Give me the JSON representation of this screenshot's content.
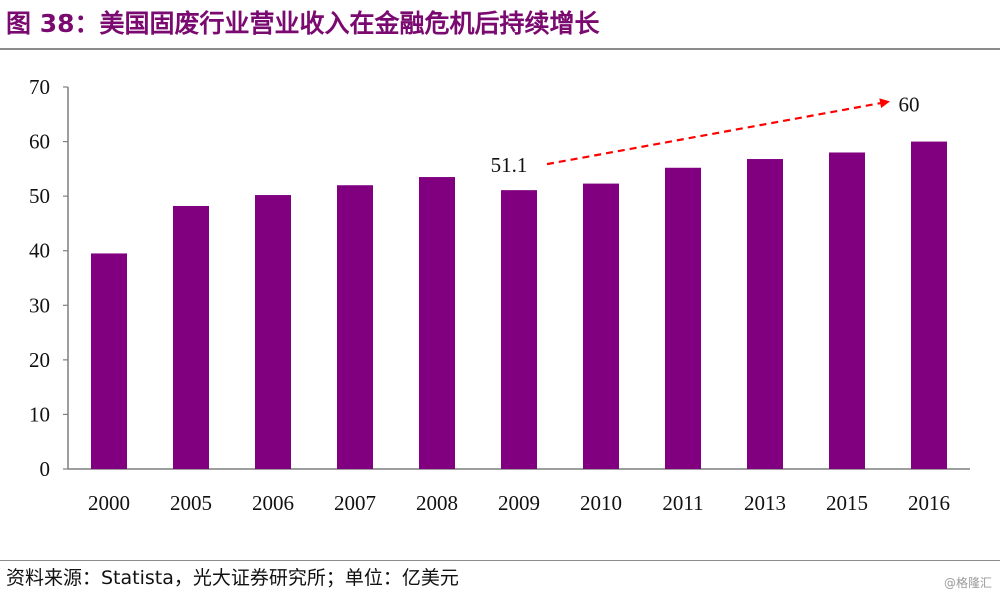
{
  "title": "图 38：美国固废行业营业收入在金融危机后持续增长",
  "source": "资料来源：Statista，光大证券研究所；单位：亿美元",
  "watermark": "@格隆汇",
  "chart_data": {
    "type": "bar",
    "categories": [
      "2000",
      "2005",
      "2006",
      "2007",
      "2008",
      "2009",
      "2010",
      "2011",
      "2013",
      "2015",
      "2016"
    ],
    "values": [
      39.5,
      48.2,
      50.2,
      52.0,
      53.5,
      51.1,
      52.3,
      55.2,
      56.8,
      58.0,
      60.0
    ],
    "ylim": [
      0,
      70
    ],
    "yticks": [
      0,
      10,
      20,
      30,
      40,
      50,
      60,
      70
    ],
    "bar_color": "#800080",
    "grid": false,
    "legend": "none",
    "annotations": [
      {
        "text": "51.1",
        "category": "2009"
      },
      {
        "text": "60",
        "category": "2016"
      }
    ],
    "arrow_color": "#ff0000"
  }
}
